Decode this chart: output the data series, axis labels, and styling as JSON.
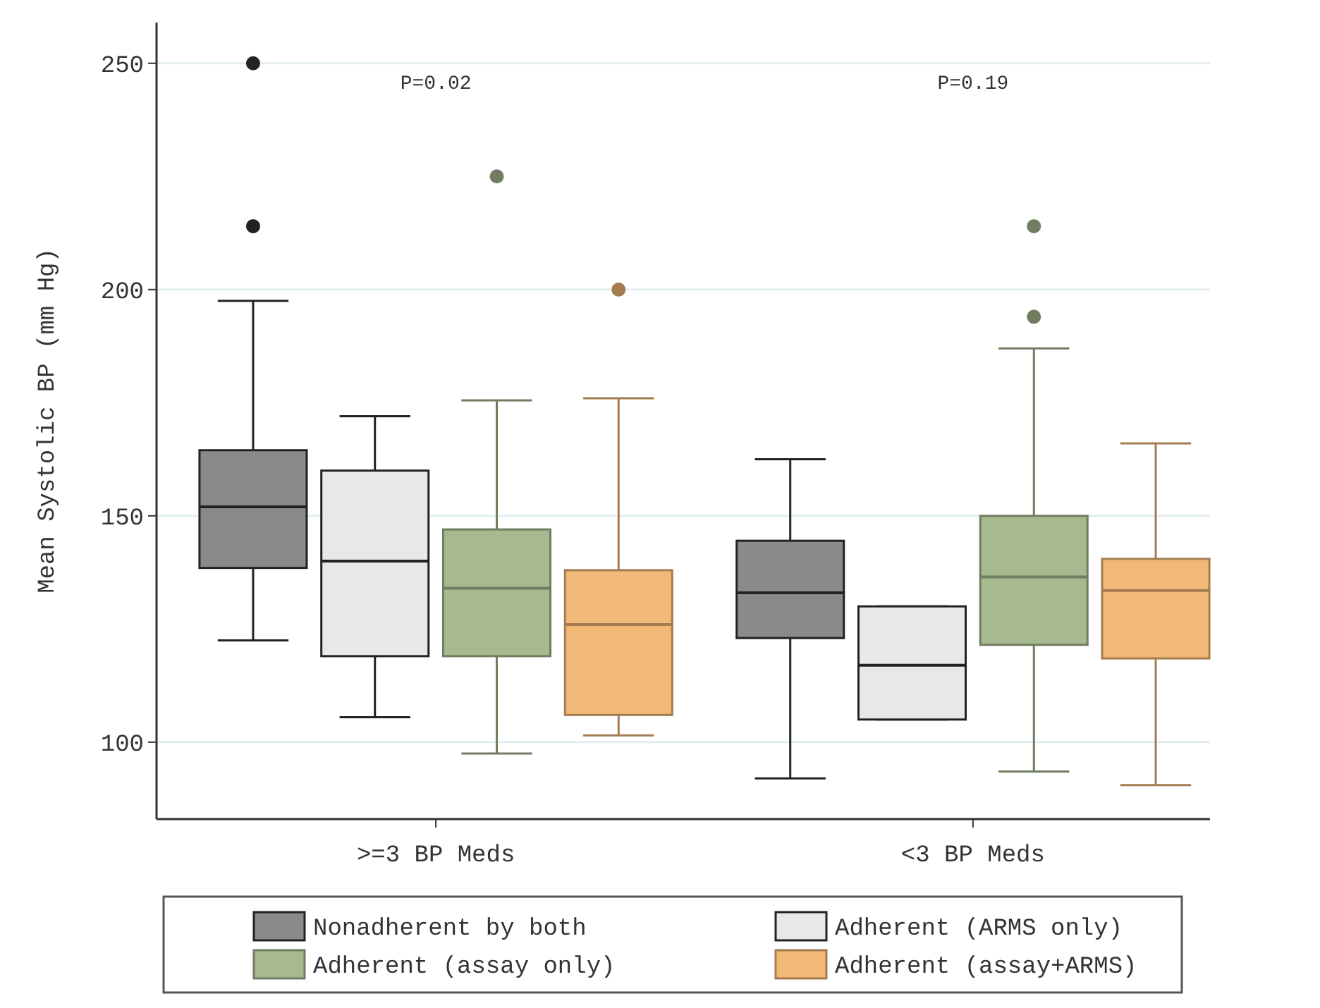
{
  "chart_data": {
    "type": "box",
    "ylabel": "Mean Systolic BP (mm Hg)",
    "categories": [
      ">=3 BP Meds",
      "<3 BP Meds"
    ],
    "ylim": [
      83,
      259
    ],
    "yticks": [
      100,
      150,
      200,
      250
    ],
    "grid": "y",
    "legend": "bottom",
    "annotations": [
      "P=0.02",
      "P=0.19"
    ],
    "series": [
      {
        "name": "Nonadherent by both",
        "color": "#8a8a8a",
        "boxes": [
          {
            "low": 122.5,
            "q1": 138.5,
            "median": 152,
            "q3": 164.5,
            "high": 197.5,
            "outliers": [
              214,
              250
            ]
          },
          {
            "low": 92,
            "q1": 123,
            "median": 133,
            "q3": 144.5,
            "high": 162.5
          }
        ]
      },
      {
        "name": "Adherent (ARMS only)",
        "color": "#e8e8e8",
        "boxes": [
          {
            "low": 105.5,
            "q1": 119,
            "median": 140,
            "q3": 160,
            "high": 172
          },
          {
            "low": 105,
            "q1": 105,
            "median": 117,
            "q3": 130,
            "high": 130
          }
        ]
      },
      {
        "name": "Adherent (assay only)",
        "color": "#a6b98f",
        "boxes": [
          {
            "low": 97.5,
            "q1": 119,
            "median": 134,
            "q3": 147,
            "high": 175.5,
            "outliers": [
              225
            ]
          },
          {
            "low": 93.5,
            "q1": 121.5,
            "median": 136.5,
            "q3": 150,
            "high": 187,
            "outliers": [
              194,
              214
            ]
          }
        ]
      },
      {
        "name": "Adherent (assay+ARMS)",
        "color": "#f2b877",
        "boxes": [
          {
            "low": 101.5,
            "q1": 106,
            "median": 126,
            "q3": 138,
            "high": 176,
            "outliers": [
              200
            ]
          },
          {
            "low": 90.5,
            "q1": 118.5,
            "median": 133.5,
            "q3": 140.5,
            "high": 166
          }
        ]
      }
    ]
  }
}
